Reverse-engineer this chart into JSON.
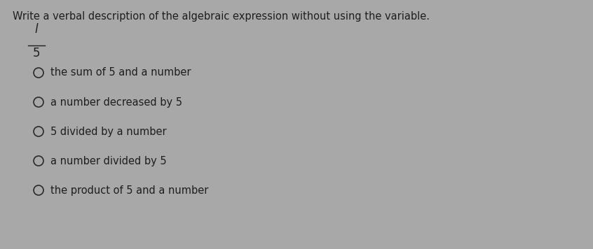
{
  "title": "Write a verbal description of the algebraic expression without using the variable.",
  "expression_numerator": "l",
  "expression_denominator": "5",
  "options": [
    "the sum of 5 and a number",
    "a number decreased by 5",
    "5 divided by a number",
    "a number divided by 5",
    "the product of 5 and a number"
  ],
  "bg_color": "#a8a8a8",
  "text_color": "#1e1e1e",
  "title_fontsize": 10.5,
  "option_fontsize": 10.5,
  "expr_fontsize": 12,
  "circle_color": "#2a2a2a"
}
